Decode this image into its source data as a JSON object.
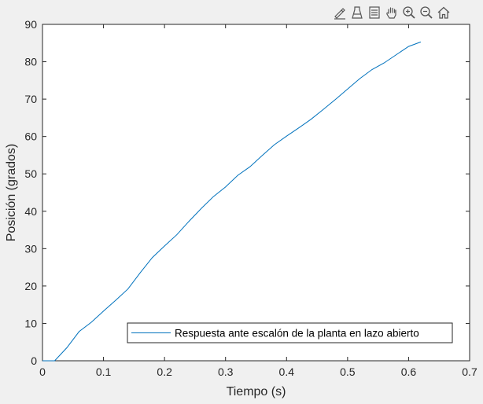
{
  "toolbar": {
    "buttons": [
      {
        "name": "edit-plot-icon"
      },
      {
        "name": "insert-legend-icon"
      },
      {
        "name": "data-tips-icon"
      },
      {
        "name": "pan-icon"
      },
      {
        "name": "zoom-in-icon"
      },
      {
        "name": "zoom-out-icon"
      },
      {
        "name": "home-icon"
      }
    ]
  },
  "chart_data": {
    "type": "line",
    "title": "",
    "xlabel": "Tiempo (s)",
    "ylabel": "Posición (grados)",
    "xlim": [
      0,
      0.7
    ],
    "ylim": [
      0,
      90
    ],
    "xticks": [
      "0",
      "0.1",
      "0.2",
      "0.3",
      "0.4",
      "0.5",
      "0.6",
      "0.7"
    ],
    "yticks": [
      "0",
      "10",
      "20",
      "30",
      "40",
      "50",
      "60",
      "70",
      "80",
      "90"
    ],
    "grid": false,
    "legend_position": "bottom-right",
    "series_color": "#0072bd",
    "series": [
      {
        "name": "Respuesta ante escalón de la planta en lazo abierto",
        "x": [
          0,
          0.02,
          0.04,
          0.06,
          0.08,
          0.1,
          0.12,
          0.14,
          0.16,
          0.18,
          0.2,
          0.22,
          0.24,
          0.26,
          0.28,
          0.3,
          0.32,
          0.34,
          0.36,
          0.38,
          0.4,
          0.42,
          0.44,
          0.46,
          0.48,
          0.5,
          0.52,
          0.54,
          0.56,
          0.58,
          0.6,
          0.62
        ],
        "y": [
          0,
          0,
          3.5,
          7.8,
          10.3,
          13.3,
          16.2,
          19.2,
          23.5,
          27.6,
          30.7,
          33.7,
          37.3,
          40.7,
          43.9,
          46.5,
          49.6,
          51.9,
          54.9,
          57.8,
          60.1,
          62.3,
          64.6,
          67.2,
          69.9,
          72.7,
          75.5,
          77.9,
          79.7,
          81.9,
          84.1,
          85.3
        ]
      }
    ]
  }
}
